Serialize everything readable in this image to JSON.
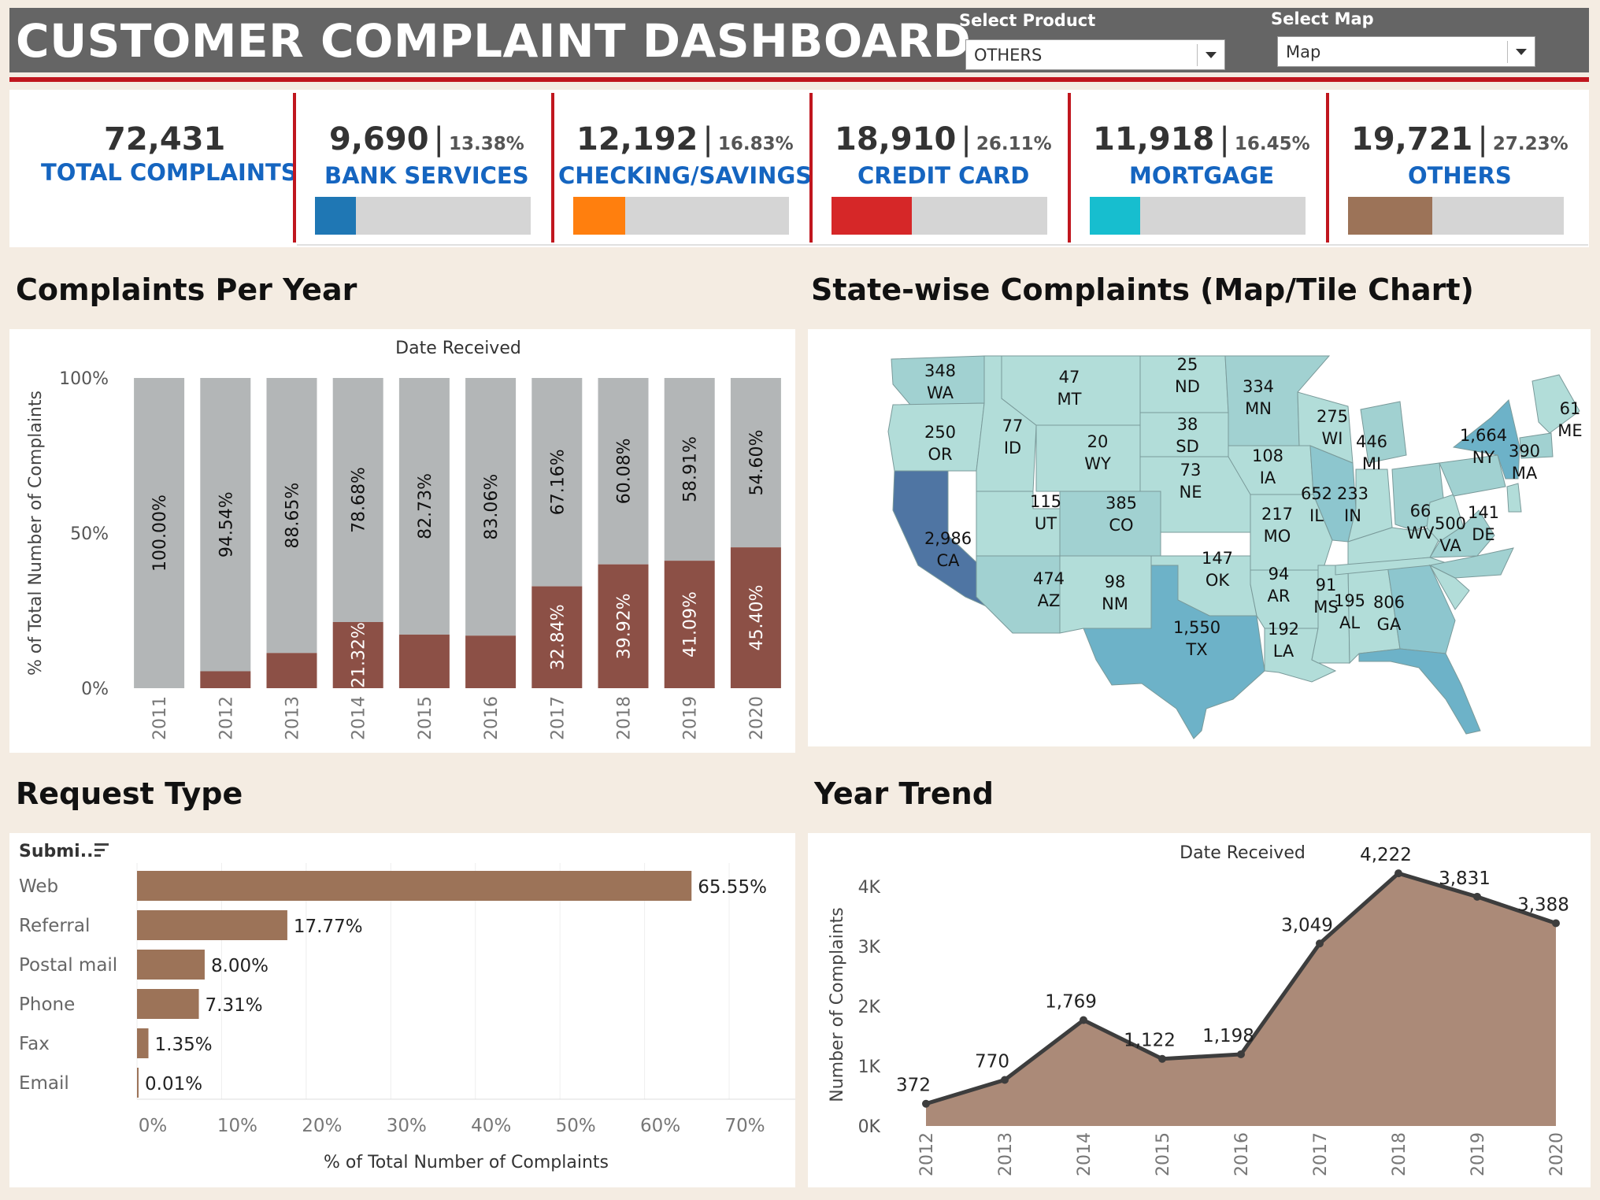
{
  "header": {
    "title": "CUSTOMER COMPLAINT DASHBOARD",
    "product_filter_label": "Select Product",
    "product_filter_value": "OTHERS",
    "map_filter_label": "Select Map",
    "map_filter_value": "Map"
  },
  "kpis": {
    "total": {
      "value": "72,431",
      "label": "TOTAL COMPLAINTS"
    },
    "items": [
      {
        "value": "9,690",
        "pct": "13.38%",
        "label": "BANK SERVICES",
        "color": "#1f77b4",
        "share": 0.1338
      },
      {
        "value": "12,192",
        "pct": "16.83%",
        "label": "CHECKING/SAVINGS",
        "color": "#ff7f0e",
        "share": 0.1683
      },
      {
        "value": "18,910",
        "pct": "26.11%",
        "label": "CREDIT CARD",
        "color": "#d62728",
        "share": 0.2611
      },
      {
        "value": "11,918",
        "pct": "16.45%",
        "label": "MORTGAGE",
        "color": "#17becf",
        "share": 0.1645
      },
      {
        "value": "19,721",
        "pct": "27.23%",
        "label": "OTHERS",
        "color": "#9c7358",
        "share": 0.2723
      }
    ]
  },
  "sections": {
    "per_year": "Complaints Per Year",
    "state": "State-wise Complaints (Map/Tile Chart)",
    "request": "Request Type",
    "trend": "Year Trend"
  },
  "chart_data": [
    {
      "type": "bar",
      "stacked": true,
      "title": "Date Received",
      "ylabel": "% of Total Number of Complaints",
      "yticks": [
        "100%",
        "50%",
        "0%"
      ],
      "ylim": [
        0,
        100
      ],
      "categories": [
        "2011",
        "2012",
        "2013",
        "2014",
        "2015",
        "2016",
        "2017",
        "2018",
        "2019",
        "2020"
      ],
      "series": [
        {
          "color": "#8c5046",
          "values": [
            0.0,
            5.46,
            11.35,
            21.32,
            17.27,
            16.94,
            32.84,
            39.92,
            41.09,
            45.4
          ]
        },
        {
          "color": "#b3b6b7",
          "values": [
            100.0,
            94.54,
            88.65,
            78.68,
            82.73,
            83.06,
            67.16,
            60.08,
            58.91,
            54.6
          ]
        }
      ],
      "top_labels": [
        "100.00%",
        "94.54%",
        "88.65%",
        "78.68%",
        "82.73%",
        "83.06%",
        "67.16%",
        "60.08%",
        "58.91%",
        "54.60%"
      ],
      "bottom_labels": [
        "",
        "",
        "",
        "21.32%",
        "",
        "",
        "32.84%",
        "39.92%",
        "41.09%",
        "45.40%"
      ]
    },
    {
      "type": "bar",
      "orientation": "horizontal",
      "header": "Submi..",
      "xlabel": "% of Total Number of Complaints",
      "xlim": [
        0,
        78
      ],
      "xticks": [
        "0%",
        "10%",
        "20%",
        "30%",
        "40%",
        "50%",
        "60%",
        "70%"
      ],
      "categories": [
        "Web",
        "Referral",
        "Postal mail",
        "Phone",
        "Fax",
        "Email"
      ],
      "values": [
        65.55,
        17.77,
        8.0,
        7.31,
        1.35,
        0.01
      ],
      "labels": [
        "65.55%",
        "17.77%",
        "8.00%",
        "7.31%",
        "1.35%",
        "0.01%"
      ],
      "color": "#9c7358"
    },
    {
      "type": "area",
      "title": "Date Received",
      "ylabel": "Number of Complaints",
      "yticks": [
        "4K",
        "3K",
        "2K",
        "1K",
        "0K"
      ],
      "ylim": [
        0,
        4500
      ],
      "x": [
        "2012",
        "2013",
        "2014",
        "2015",
        "2016",
        "2017",
        "2018",
        "2019",
        "2020"
      ],
      "values": [
        372,
        770,
        1769,
        1122,
        1198,
        3049,
        4222,
        3831,
        3388
      ],
      "labels": [
        "372",
        "770",
        "1,769",
        "1,122",
        "1,198",
        "3,049",
        "4,222",
        "3,831",
        "3,388"
      ],
      "fill": "#ab8a78",
      "line": "#3d3d3d"
    }
  ],
  "map": {
    "states": [
      {
        "abbr": "WA",
        "value": "348"
      },
      {
        "abbr": "OR",
        "value": "250"
      },
      {
        "abbr": "CA",
        "value": "2,986"
      },
      {
        "abbr": "ID",
        "value": "77"
      },
      {
        "abbr": "MT",
        "value": "47"
      },
      {
        "abbr": "WY",
        "value": "20"
      },
      {
        "abbr": "UT",
        "value": "115"
      },
      {
        "abbr": "AZ",
        "value": "474"
      },
      {
        "abbr": "CO",
        "value": "385"
      },
      {
        "abbr": "NM",
        "value": "98"
      },
      {
        "abbr": "ND",
        "value": "25"
      },
      {
        "abbr": "SD",
        "value": "38"
      },
      {
        "abbr": "NE",
        "value": "73"
      },
      {
        "abbr": "OK",
        "value": "147"
      },
      {
        "abbr": "TX",
        "value": "1,550"
      },
      {
        "abbr": "MN",
        "value": "334"
      },
      {
        "abbr": "IA",
        "value": "108"
      },
      {
        "abbr": "MO",
        "value": "217"
      },
      {
        "abbr": "AR",
        "value": "94"
      },
      {
        "abbr": "LA",
        "value": "192"
      },
      {
        "abbr": "WI",
        "value": "275"
      },
      {
        "abbr": "IL",
        "value": "652"
      },
      {
        "abbr": "MS",
        "value": "91"
      },
      {
        "abbr": "MI",
        "value": "446"
      },
      {
        "abbr": "IN",
        "value": "233"
      },
      {
        "abbr": "AL",
        "value": "195"
      },
      {
        "abbr": "GA",
        "value": "806"
      },
      {
        "abbr": "WV",
        "value": "66"
      },
      {
        "abbr": "VA",
        "value": "500"
      },
      {
        "abbr": "NY",
        "value": "1,664"
      },
      {
        "abbr": "MA",
        "value": "390"
      },
      {
        "abbr": "ME",
        "value": "61"
      },
      {
        "abbr": "DE",
        "value": "141"
      }
    ]
  }
}
